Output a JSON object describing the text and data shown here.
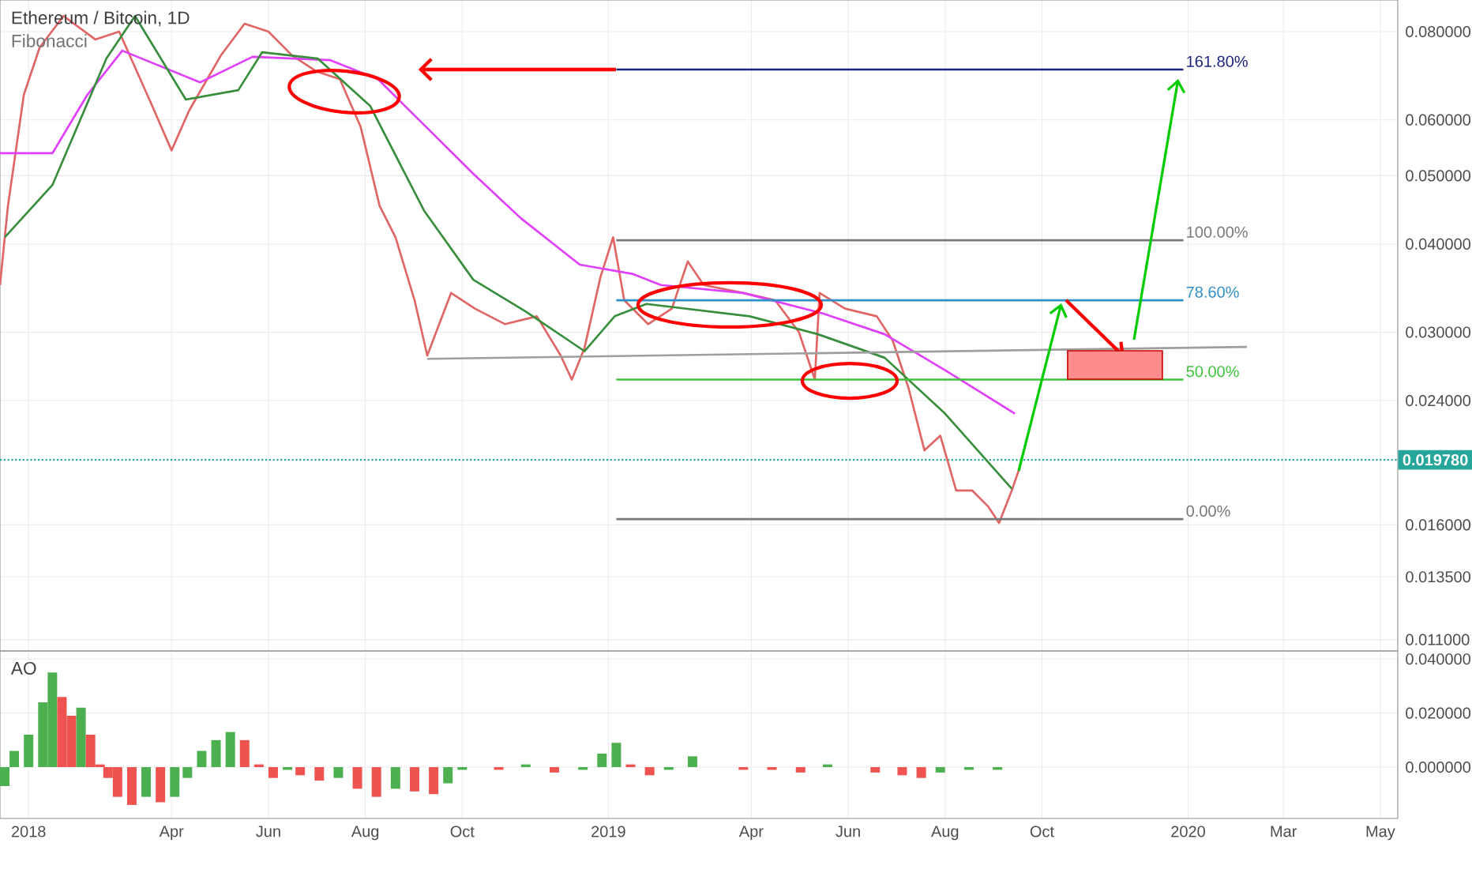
{
  "chart_data": [
    {
      "type": "line",
      "title": "Ethereum / Bitcoin, 1D",
      "subtitle": "Fibonacci",
      "log": "y",
      "grid": true,
      "tick_labels": "y",
      "xlim": [
        "2017-12-14",
        "2020-05-12"
      ],
      "xticks": [
        {
          "value": "2018-01-01",
          "label": null
        },
        {
          "value": "2018-04-01",
          "label": null
        },
        {
          "value": "2018-06-01",
          "label": null
        },
        {
          "value": "2018-08-01",
          "label": null
        },
        {
          "value": "2018-10-01",
          "label": null
        },
        {
          "value": "2019-01-01",
          "label": null
        },
        {
          "value": "2019-04-01",
          "label": null
        },
        {
          "value": "2019-06-01",
          "label": null
        },
        {
          "value": "2019-08-01",
          "label": null
        },
        {
          "value": "2019-10-01",
          "label": null
        },
        {
          "value": "2020-01-01",
          "label": null
        },
        {
          "value": "2020-03-01",
          "label": null
        },
        {
          "value": "2020-05-01",
          "label": null
        }
      ],
      "ylim": [
        0.0106,
        0.0887
      ],
      "yticks": [
        {
          "value": 0.011,
          "label": "0.011000"
        },
        {
          "value": 0.0135,
          "label": "0.013500"
        },
        {
          "value": 0.016,
          "label": "0.016000"
        },
        {
          "value": 0.024,
          "label": "0.024000"
        },
        {
          "value": 0.03,
          "label": "0.030000"
        },
        {
          "value": 0.04,
          "label": "0.040000"
        },
        {
          "value": 0.05,
          "label": "0.050000"
        },
        {
          "value": 0.06,
          "label": "0.060000"
        },
        {
          "value": 0.08,
          "label": "0.080000"
        }
      ],
      "ref_lines": [
        {
          "axis": "y",
          "value": 0.01978,
          "label": "0.019780",
          "color": "#26a69a",
          "line_style": "dotted"
        }
      ],
      "series": [
        {
          "color": "#e06666",
          "x": [
            "2017-12-14",
            "2017-12-19",
            "2017-12-29",
            "2018-01-08",
            "2018-01-23",
            "2018-02-12",
            "2018-02-27",
            "2018-03-19",
            "2018-04-01",
            "2018-04-12",
            "2018-05-02",
            "2018-05-17",
            "2018-06-01",
            "2018-06-16",
            "2018-07-01",
            "2018-07-16",
            "2018-07-29",
            "2018-08-10",
            "2018-08-20",
            "2018-09-01",
            "2018-09-09",
            "2018-09-24",
            "2018-10-09",
            "2018-10-28",
            "2018-11-17",
            "2018-12-02",
            "2018-12-09",
            "2018-12-17",
            "2018-12-27",
            "2019-01-04",
            "2019-01-11",
            "2019-01-26",
            "2019-02-10",
            "2019-02-20",
            "2019-03-02",
            "2019-03-27",
            "2019-04-16",
            "2019-05-01",
            "2019-05-11",
            "2019-05-14",
            "2019-05-30",
            "2019-06-19",
            "2019-06-29",
            "2019-07-09",
            "2019-07-19",
            "2019-07-29",
            "2019-08-08",
            "2019-08-18",
            "2019-08-28",
            "2019-09-04",
            "2019-09-12",
            "2019-09-17"
          ],
          "values": [
            0.035,
            0.0453,
            0.0651,
            0.076,
            0.0842,
            0.078,
            0.08,
            0.0634,
            0.0543,
            0.0618,
            0.074,
            0.0821,
            0.08,
            0.074,
            0.0703,
            0.0685,
            0.0587,
            0.0453,
            0.0409,
            0.0333,
            0.0278,
            0.0341,
            0.0324,
            0.0308,
            0.0316,
            0.0278,
            0.0257,
            0.0285,
            0.0359,
            0.0409,
            0.0333,
            0.0308,
            0.0324,
            0.0378,
            0.035,
            0.0341,
            0.0333,
            0.03,
            0.0257,
            0.0341,
            0.0324,
            0.0316,
            0.0292,
            0.025,
            0.0204,
            0.0214,
            0.0179,
            0.0179,
            0.017,
            0.0161,
            0.0179,
            0.0193
          ]
        },
        {
          "color": "#e040fb",
          "x": [
            "2017-12-14",
            "2018-01-16",
            "2018-02-07",
            "2018-03-01",
            "2018-04-19",
            "2018-05-22",
            "2018-07-10",
            "2018-08-09",
            "2018-09-08",
            "2018-10-08",
            "2018-11-07",
            "2018-12-14",
            "2019-01-16",
            "2019-02-03",
            "2019-03-27",
            "2019-05-16",
            "2019-06-24",
            "2019-08-01",
            "2019-09-14"
          ],
          "values": [
            0.0538,
            0.0538,
            0.0651,
            0.0752,
            0.0678,
            0.0737,
            0.0729,
            0.0685,
            0.0587,
            0.0503,
            0.0435,
            0.0374,
            0.0363,
            0.035,
            0.0341,
            0.0319,
            0.0298,
            0.0265,
            0.023
          ]
        },
        {
          "color": "#388e3c",
          "x": [
            "2017-12-17",
            "2018-01-16",
            "2018-02-19",
            "2018-03-09",
            "2018-04-10",
            "2018-05-13",
            "2018-05-28",
            "2018-07-02",
            "2018-08-04",
            "2018-09-07",
            "2018-10-08",
            "2018-11-10",
            "2018-12-17",
            "2019-01-05",
            "2019-01-25",
            "2019-03-31",
            "2019-05-13",
            "2019-06-24",
            "2019-08-01",
            "2019-09-12"
          ],
          "values": [
            0.0409,
            0.0485,
            0.0733,
            0.0842,
            0.0641,
            0.0661,
            0.0748,
            0.0733,
            0.0628,
            0.0446,
            0.0356,
            0.0321,
            0.0282,
            0.0316,
            0.0329,
            0.0316,
            0.0298,
            0.0276,
            0.023,
            0.018
          ]
        },
        {
          "color": "#9e9e9e",
          "x": [
            "2018-09-09",
            "2020-02-07"
          ],
          "values": [
            0.0275,
            0.0286
          ]
        },
        {
          "name": "161.80%",
          "color": "#1a237e",
          "x": [
            "2019-01-06",
            "2019-12-29"
          ],
          "values": [
            0.0707,
            0.0707
          ]
        },
        {
          "name": "100.00%",
          "color": "#787878",
          "x": [
            "2019-01-06",
            "2019-12-29"
          ],
          "values": [
            0.0405,
            0.0405
          ]
        },
        {
          "name": "78.60%",
          "color": "#2e8fc8",
          "x": [
            "2019-01-06",
            "2019-12-29"
          ],
          "values": [
            0.0333,
            0.0333
          ]
        },
        {
          "name": "50.00%",
          "color": "#3cc43c",
          "x": [
            "2019-01-06",
            "2019-12-29"
          ],
          "values": [
            0.0257,
            0.0257
          ]
        },
        {
          "name": "0.00%",
          "color": "#787878",
          "x": [
            "2019-01-06",
            "2019-12-29"
          ],
          "values": [
            0.0163,
            0.0163
          ]
        }
      ]
    },
    {
      "type": "bar",
      "title": "AO",
      "grid": true,
      "xlim": [
        "2017-12-14",
        "2020-05-12"
      ],
      "xticks": [
        {
          "value": "2018-01-01",
          "label": "2018"
        },
        {
          "value": "2018-04-01",
          "label": "Apr"
        },
        {
          "value": "2018-06-01",
          "label": "Jun"
        },
        {
          "value": "2018-08-01",
          "label": "Aug"
        },
        {
          "value": "2018-10-01",
          "label": "Oct"
        },
        {
          "value": "2019-01-01",
          "label": "2019"
        },
        {
          "value": "2019-04-01",
          "label": "Apr"
        },
        {
          "value": "2019-06-01",
          "label": "Jun"
        },
        {
          "value": "2019-08-01",
          "label": "Aug"
        },
        {
          "value": "2019-10-01",
          "label": "Oct"
        },
        {
          "value": "2020-01-01",
          "label": "2020"
        },
        {
          "value": "2020-03-01",
          "label": "Mar"
        },
        {
          "value": "2020-05-01",
          "label": "May"
        }
      ],
      "ylim": [
        -0.019,
        0.043
      ],
      "yticks": [
        {
          "value": 0,
          "label": "0.000000"
        },
        {
          "value": 0.02,
          "label": "0.020000"
        },
        {
          "value": 0.04,
          "label": "0.040000"
        }
      ],
      "x": [
        "2017-12-17",
        "2017-12-23",
        "2018-01-01",
        "2018-01-10",
        "2018-01-16",
        "2018-01-22",
        "2018-01-28",
        "2018-02-03",
        "2018-02-09",
        "2018-02-15",
        "2018-02-20",
        "2018-02-26",
        "2018-03-07",
        "2018-03-16",
        "2018-03-25",
        "2018-04-03",
        "2018-04-11",
        "2018-04-20",
        "2018-04-29",
        "2018-05-08",
        "2018-05-17",
        "2018-05-26",
        "2018-06-04",
        "2018-06-13",
        "2018-06-21",
        "2018-07-03",
        "2018-07-15",
        "2018-07-27",
        "2018-08-08",
        "2018-08-20",
        "2018-09-01",
        "2018-09-13",
        "2018-09-22",
        "2018-10-01",
        "2018-10-13",
        "2018-10-24",
        "2018-11-10",
        "2018-11-28",
        "2018-12-16",
        "2018-12-28",
        "2019-01-06",
        "2019-01-15",
        "2019-01-27",
        "2019-02-08",
        "2019-02-23",
        "2019-03-09",
        "2019-03-27",
        "2019-04-14",
        "2019-05-02",
        "2019-05-19",
        "2019-06-03",
        "2019-06-18",
        "2019-07-05",
        "2019-07-17",
        "2019-07-29",
        "2019-08-16",
        "2019-09-03",
        "2019-09-15"
      ],
      "values": [
        -0.007,
        0.006,
        0.012,
        0.024,
        0.035,
        0.026,
        0.019,
        0.022,
        0.012,
        0.001,
        -0.004,
        -0.011,
        -0.014,
        -0.011,
        -0.013,
        -0.011,
        -0.004,
        0.006,
        0.01,
        0.013,
        0.01,
        0.001,
        -0.004,
        -0.001,
        -0.003,
        -0.005,
        -0.004,
        -0.008,
        -0.011,
        -0.008,
        -0.009,
        -0.01,
        -0.006,
        -0.001,
        0.0,
        -0.001,
        0.001,
        -0.002,
        -0.001,
        0.005,
        0.009,
        0.001,
        -0.003,
        -0.001,
        0.004,
        0.0,
        -0.001,
        -0.001,
        -0.002,
        0.001,
        0.0,
        -0.002,
        -0.003,
        -0.004,
        -0.002,
        -0.001,
        -0.001,
        0.0
      ],
      "colors": [
        "#4caf50",
        "#4caf50",
        "#4caf50",
        "#4caf50",
        "#4caf50",
        "#ef5350",
        "#ef5350",
        "#4caf50",
        "#ef5350",
        "#ef5350",
        "#ef5350",
        "#ef5350",
        "#ef5350",
        "#4caf50",
        "#ef5350",
        "#4caf50",
        "#4caf50",
        "#4caf50",
        "#4caf50",
        "#4caf50",
        "#ef5350",
        "#ef5350",
        "#ef5350",
        "#4caf50",
        "#ef5350",
        "#ef5350",
        "#4caf50",
        "#ef5350",
        "#ef5350",
        "#4caf50",
        "#ef5350",
        "#ef5350",
        "#4caf50",
        "#4caf50",
        "#4caf50",
        "#ef5350",
        "#4caf50",
        "#ef5350",
        "#4caf50",
        "#4caf50",
        "#4caf50",
        "#ef5350",
        "#ef5350",
        "#4caf50",
        "#4caf50",
        "#ef5350",
        "#ef5350",
        "#ef5350",
        "#ef5350",
        "#4caf50",
        "#ef5350",
        "#ef5350",
        "#ef5350",
        "#ef5350",
        "#4caf50",
        "#4caf50",
        "#4caf50",
        "#4caf50"
      ]
    }
  ]
}
